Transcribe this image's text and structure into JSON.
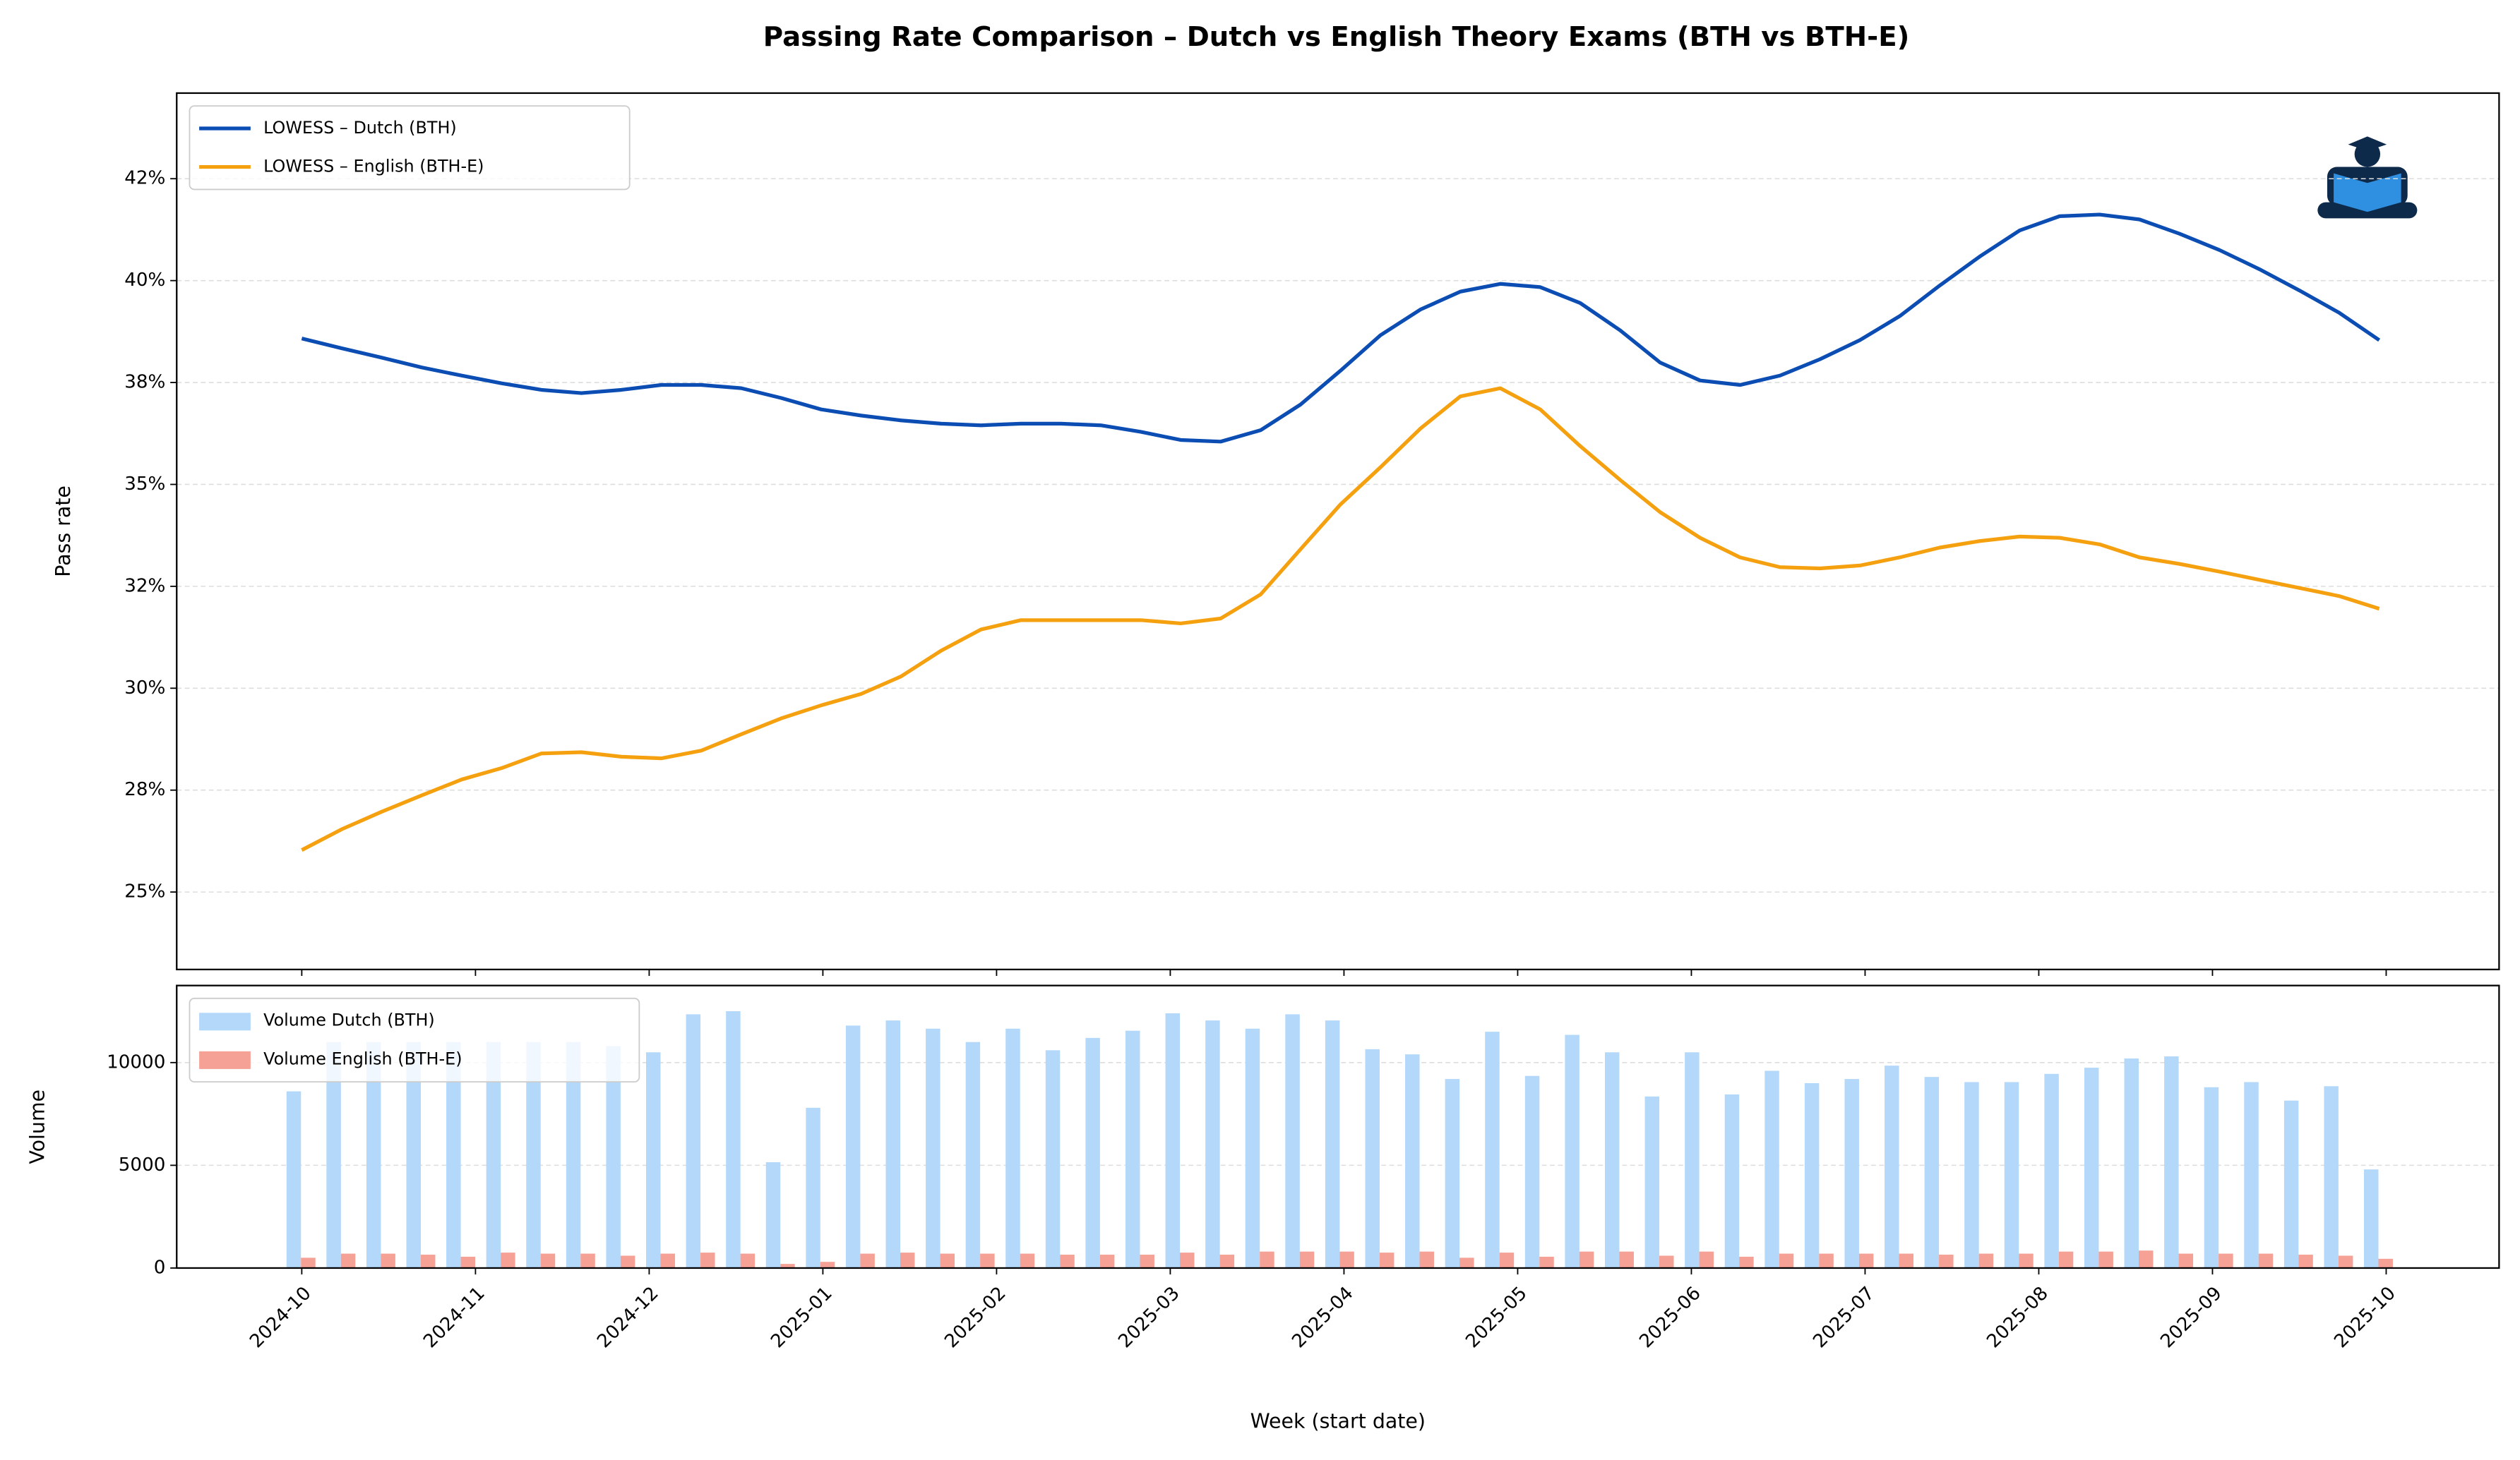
{
  "title": "Passing Rate Comparison – Dutch vs English Theory Exams (BTH vs BTH-E)",
  "chart_data": [
    {
      "type": "line",
      "ylabel": "Pass rate",
      "legend": "upper left",
      "grid": true,
      "x": [
        0,
        0.23,
        0.46,
        0.69,
        0.92,
        1.15,
        1.38,
        1.61,
        1.84,
        2.07,
        2.3,
        2.53,
        2.76,
        2.99,
        3.22,
        3.45,
        3.68,
        3.91,
        4.14,
        4.37,
        4.6,
        4.83,
        5.06,
        5.29,
        5.52,
        5.75,
        5.98,
        6.21,
        6.44,
        6.67,
        6.9,
        7.13,
        7.36,
        7.59,
        7.82,
        8.05,
        8.28,
        8.51,
        8.74,
        8.97,
        9.2,
        9.43,
        9.66,
        9.89,
        10.12,
        10.35,
        10.58,
        10.81,
        11.04,
        11.27,
        11.5,
        11.73,
        11.96
      ],
      "xlim": [
        -0.72,
        12.65
      ],
      "ylim": [
        23.1,
        44.6
      ],
      "yticks": [
        {
          "value": 25,
          "label": "25%"
        },
        {
          "value": 27.5,
          "label": "28%"
        },
        {
          "value": 30,
          "label": "30%"
        },
        {
          "value": 32.5,
          "label": "32%"
        },
        {
          "value": 35,
          "label": "35%"
        },
        {
          "value": 37.5,
          "label": "38%"
        },
        {
          "value": 40,
          "label": "40%"
        },
        {
          "value": 42.5,
          "label": "42%"
        }
      ],
      "series": [
        {
          "name": "LOWESS – Dutch (BTH)",
          "color": "#0b4db3",
          "values": [
            38.58,
            38.34,
            38.11,
            37.87,
            37.67,
            37.48,
            37.32,
            37.24,
            37.32,
            37.44,
            37.44,
            37.36,
            37.12,
            36.84,
            36.69,
            36.57,
            36.49,
            36.45,
            36.49,
            36.49,
            36.45,
            36.29,
            36.09,
            36.05,
            36.33,
            36.96,
            37.79,
            38.66,
            39.29,
            39.73,
            39.92,
            39.84,
            39.45,
            38.78,
            37.99,
            37.55,
            37.44,
            37.67,
            38.07,
            38.54,
            39.13,
            39.88,
            40.59,
            41.23,
            41.58,
            41.62,
            41.5,
            41.15,
            40.75,
            40.28,
            39.76,
            39.21,
            38.54
          ]
        },
        {
          "name": "LOWESS – English (BTH-E)",
          "color": "#f5a00f",
          "values": [
            26.03,
            26.54,
            26.97,
            27.37,
            27.76,
            28.04,
            28.4,
            28.43,
            28.32,
            28.28,
            28.47,
            28.87,
            29.26,
            29.58,
            29.86,
            30.29,
            30.92,
            31.44,
            31.67,
            31.67,
            31.67,
            31.67,
            31.59,
            31.71,
            32.3,
            33.41,
            34.51,
            35.42,
            36.37,
            37.16,
            37.36,
            36.84,
            35.94,
            35.11,
            34.32,
            33.69,
            33.21,
            32.97,
            32.94,
            33.01,
            33.21,
            33.45,
            33.61,
            33.72,
            33.69,
            33.53,
            33.21,
            33.05,
            32.86,
            32.66,
            32.46,
            32.26,
            31.95
          ]
        }
      ]
    },
    {
      "type": "bar",
      "ylabel": "Volume",
      "xlabel": "Week (start date)",
      "legend": "upper left",
      "grid": true,
      "x": [
        0,
        0.23,
        0.46,
        0.69,
        0.92,
        1.15,
        1.38,
        1.61,
        1.84,
        2.07,
        2.3,
        2.53,
        2.76,
        2.99,
        3.22,
        3.45,
        3.68,
        3.91,
        4.14,
        4.37,
        4.6,
        4.83,
        5.06,
        5.29,
        5.52,
        5.75,
        5.98,
        6.21,
        6.44,
        6.67,
        6.9,
        7.13,
        7.36,
        7.59,
        7.82,
        8.05,
        8.28,
        8.51,
        8.74,
        8.97,
        9.2,
        9.43,
        9.66,
        9.89,
        10.12,
        10.35,
        10.58,
        10.81,
        11.04,
        11.27,
        11.5,
        11.73,
        11.96
      ],
      "xlim": [
        -0.72,
        12.65
      ],
      "ylim": [
        0,
        13750
      ],
      "xticks": [
        {
          "value": 0,
          "label": "2024-10"
        },
        {
          "value": 1,
          "label": "2024-11"
        },
        {
          "value": 2,
          "label": "2024-12"
        },
        {
          "value": 3,
          "label": "2025-01"
        },
        {
          "value": 4,
          "label": "2025-02"
        },
        {
          "value": 5,
          "label": "2025-03"
        },
        {
          "value": 6,
          "label": "2025-04"
        },
        {
          "value": 7,
          "label": "2025-05"
        },
        {
          "value": 8,
          "label": "2025-06"
        },
        {
          "value": 9,
          "label": "2025-07"
        },
        {
          "value": 10,
          "label": "2025-08"
        },
        {
          "value": 11,
          "label": "2025-09"
        },
        {
          "value": 12,
          "label": "2025-10"
        }
      ],
      "yticks": [
        0,
        5000,
        10000
      ],
      "series": [
        {
          "name": "Volume Dutch (BTH)",
          "color": "#b3d8fa",
          "values": [
            8600,
            11000,
            11000,
            11000,
            11000,
            11000,
            11000,
            11000,
            10800,
            10500,
            12350,
            12500,
            5150,
            7800,
            11800,
            12050,
            11650,
            11000,
            11650,
            10600,
            11200,
            11550,
            12400,
            12050,
            11650,
            12350,
            12050,
            10650,
            10400,
            9200,
            11500,
            9350,
            11350,
            10500,
            8350,
            10500,
            8450,
            9600,
            9000,
            9200,
            9850,
            9300,
            9050,
            9050,
            9450,
            9750,
            10200,
            10300,
            8800,
            9050,
            8150,
            8850,
            4800
          ]
        },
        {
          "name": "Volume English (BTH-E)",
          "color": "#f5a195",
          "values": [
            500,
            700,
            700,
            650,
            550,
            750,
            700,
            700,
            600,
            700,
            750,
            700,
            200,
            300,
            700,
            750,
            700,
            700,
            700,
            650,
            650,
            650,
            750,
            650,
            800,
            800,
            800,
            750,
            800,
            500,
            750,
            550,
            800,
            800,
            600,
            800,
            550,
            700,
            700,
            700,
            700,
            650,
            700,
            700,
            800,
            800,
            850,
            700,
            700,
            700,
            650,
            600,
            450
          ]
        }
      ]
    }
  ]
}
